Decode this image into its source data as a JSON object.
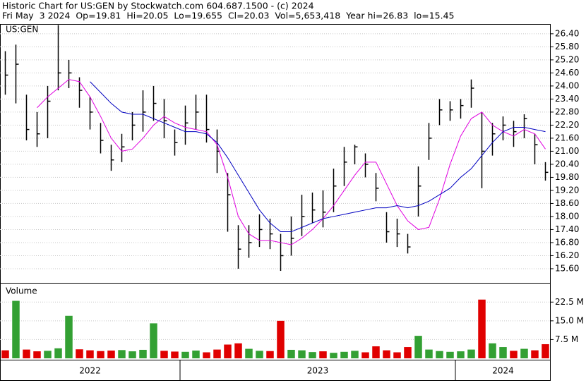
{
  "header": {
    "title": "Historic Chart for US:GEN by Stockwatch.com 604.687.1500 - (c) 2024",
    "summary": "Fri May  3 2024  Op=19.81  Hi=20.05  Lo=19.655  Cl=20.03  Vol=5,653,418  Year hi=26.83  lo=15.45"
  },
  "chart_data": {
    "type": "ohlc",
    "symbol": "US:GEN",
    "color": "#000000",
    "grid": true,
    "categories": [
      "2022",
      "2022",
      "2022",
      "2022",
      "2022",
      "2022",
      "2022",
      "2022",
      "2022",
      "2022",
      "2022",
      "2022",
      "2022",
      "2022",
      "2022",
      "2022",
      "2022",
      "2023",
      "2023",
      "2023",
      "2023",
      "2023",
      "2023",
      "2023",
      "2023",
      "2023",
      "2023",
      "2023",
      "2023",
      "2023",
      "2023",
      "2023",
      "2023",
      "2023",
      "2023",
      "2023",
      "2023",
      "2023",
      "2023",
      "2023",
      "2023",
      "2023",
      "2023",
      "2024",
      "2024",
      "2024",
      "2024",
      "2024",
      "2024",
      "2024",
      "2024",
      "2024"
    ],
    "high": [
      25.6,
      25.9,
      23.6,
      22.8,
      24.0,
      26.8,
      25.2,
      24.4,
      23.5,
      22.3,
      21.3,
      21.8,
      22.8,
      23.8,
      24.0,
      23.4,
      22.0,
      23.1,
      23.6,
      23.6,
      22.0,
      20.0,
      17.6,
      17.6,
      18.1,
      17.9,
      17.2,
      18.0,
      19.0,
      19.1,
      19.2,
      20.2,
      21.2,
      21.3,
      20.9,
      20.0,
      18.2,
      17.9,
      17.2,
      20.3,
      22.3,
      23.4,
      23.3,
      23.4,
      24.3,
      22.8,
      22.3,
      22.6,
      22.4,
      22.7,
      21.8,
      20.5
    ],
    "low": [
      23.6,
      23.2,
      21.5,
      21.2,
      21.6,
      23.8,
      23.9,
      23.0,
      22.0,
      20.9,
      20.1,
      20.5,
      21.5,
      21.9,
      22.4,
      21.6,
      20.8,
      21.3,
      22.0,
      21.4,
      20.0,
      17.3,
      15.6,
      16.1,
      16.6,
      16.5,
      15.5,
      16.2,
      17.1,
      17.7,
      17.5,
      18.2,
      19.4,
      20.4,
      19.8,
      18.7,
      16.8,
      16.6,
      16.3,
      18.0,
      20.6,
      22.2,
      22.4,
      22.5,
      23.0,
      19.3,
      20.8,
      21.5,
      21.2,
      21.6,
      20.4,
      19.65
    ],
    "close": [
      24.5,
      25.0,
      22.0,
      21.8,
      23.3,
      24.6,
      24.6,
      23.8,
      22.8,
      21.5,
      20.6,
      21.2,
      22.2,
      22.8,
      23.2,
      22.4,
      21.4,
      22.3,
      22.8,
      22.0,
      21.0,
      19.0,
      16.5,
      16.8,
      17.4,
      17.2,
      16.2,
      17.0,
      18.0,
      18.3,
      18.2,
      19.4,
      20.5,
      21.2,
      20.4,
      19.3,
      17.3,
      17.2,
      16.6,
      19.4,
      21.6,
      22.9,
      22.9,
      23.1,
      23.9,
      21.0,
      21.8,
      22.2,
      21.9,
      22.5,
      21.3,
      20.03
    ],
    "moving_averages": [
      {
        "color": "#e000e0",
        "values": [
          null,
          null,
          null,
          23.0,
          23.5,
          23.9,
          24.3,
          24.2,
          23.5,
          22.6,
          21.6,
          21.0,
          21.1,
          21.6,
          22.2,
          22.6,
          22.3,
          22.1,
          22.0,
          21.9,
          21.3,
          19.8,
          18.0,
          17.2,
          16.9,
          16.9,
          16.8,
          16.7,
          17.0,
          17.4,
          17.9,
          18.5,
          19.2,
          19.9,
          20.5,
          20.5,
          19.5,
          18.5,
          17.8,
          17.4,
          17.5,
          18.8,
          20.4,
          21.7,
          22.5,
          22.8,
          22.2,
          21.9,
          21.7,
          22.0,
          21.8,
          21.1
        ]
      },
      {
        "color": "#0000c0",
        "values": [
          null,
          null,
          null,
          null,
          null,
          null,
          null,
          null,
          24.2,
          23.7,
          23.2,
          22.8,
          22.7,
          22.7,
          22.5,
          22.3,
          22.1,
          21.9,
          21.9,
          21.8,
          21.4,
          20.7,
          19.9,
          19.1,
          18.3,
          17.7,
          17.3,
          17.3,
          17.5,
          17.7,
          17.9,
          18.0,
          18.1,
          18.2,
          18.3,
          18.4,
          18.4,
          18.5,
          18.4,
          18.5,
          18.7,
          19.0,
          19.3,
          19.8,
          20.2,
          20.8,
          21.4,
          21.9,
          22.1,
          22.1,
          22.0,
          21.9
        ]
      }
    ],
    "ylim": [
      14.95,
      26.85
    ],
    "yticks": [
      {
        "value": 15.6,
        "label": "15.60"
      },
      {
        "value": 16.2,
        "label": "16.20"
      },
      {
        "value": 16.8,
        "label": "16.80"
      },
      {
        "value": 17.4,
        "label": "17.40"
      },
      {
        "value": 18.0,
        "label": "18.00"
      },
      {
        "value": 18.6,
        "label": "18.60"
      },
      {
        "value": 19.2,
        "label": "19.20"
      },
      {
        "value": 19.8,
        "label": "19.80"
      },
      {
        "value": 20.4,
        "label": "20.40"
      },
      {
        "value": 21.0,
        "label": "21.00"
      },
      {
        "value": 21.6,
        "label": "21.60"
      },
      {
        "value": 22.2,
        "label": "22.20"
      },
      {
        "value": 22.8,
        "label": "22.80"
      },
      {
        "value": 23.4,
        "label": "23.40"
      },
      {
        "value": 24.0,
        "label": "24.00"
      },
      {
        "value": 24.6,
        "label": "24.60"
      },
      {
        "value": 25.2,
        "label": "25.20"
      },
      {
        "value": 25.8,
        "label": "25.80"
      },
      {
        "value": 26.4,
        "label": "26.40"
      }
    ],
    "volume": {
      "title": "Volume",
      "up_color": "#33a033",
      "down_color": "#e00000",
      "values": [
        3.2,
        23.0,
        3.5,
        2.8,
        3.0,
        4.0,
        17.0,
        3.6,
        3.2,
        2.9,
        3.1,
        3.3,
        2.8,
        3.4,
        14.0,
        3.0,
        2.7,
        2.6,
        3.1,
        2.4,
        3.5,
        5.5,
        6.0,
        3.8,
        3.0,
        2.9,
        15.0,
        3.4,
        3.2,
        2.5,
        2.8,
        2.2,
        2.6,
        3.0,
        2.4,
        4.8,
        3.2,
        2.4,
        4.5,
        9.0,
        3.5,
        2.9,
        2.6,
        2.8,
        3.5,
        23.5,
        6.0,
        4.5,
        3.0,
        3.8,
        3.2,
        5.65
      ],
      "ylim": [
        0,
        30.2
      ],
      "yticks": [
        {
          "value": 7.5,
          "label": "7.5 M"
        },
        {
          "value": 15.0,
          "label": "15.0 M"
        },
        {
          "value": 22.5,
          "label": "22.5 M"
        }
      ]
    }
  }
}
